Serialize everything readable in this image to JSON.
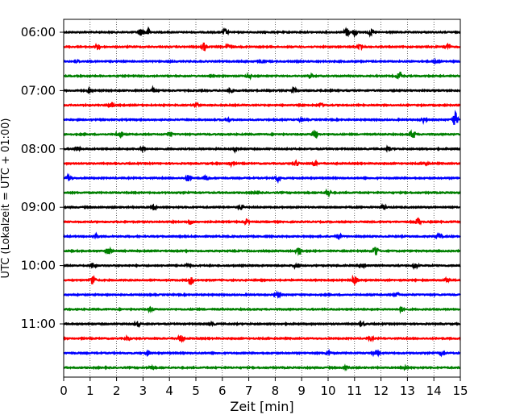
{
  "chart_data": {
    "type": "line",
    "title": "",
    "xlabel": "Zeit  [min]",
    "ylabel": "UTC (Lokalzeit = UTC + 01:00)",
    "xlim": [
      0,
      15
    ],
    "x_ticks": [
      0,
      1,
      2,
      3,
      4,
      5,
      6,
      7,
      8,
      9,
      10,
      11,
      12,
      13,
      14,
      15
    ],
    "x_grid": "dotted",
    "y_ticks": [
      {
        "label": "06:00",
        "trace_index": 0
      },
      {
        "label": "07:00",
        "trace_index": 4
      },
      {
        "label": "08:00",
        "trace_index": 8
      },
      {
        "label": "09:00",
        "trace_index": 12
      },
      {
        "label": "10:00",
        "trace_index": 16
      },
      {
        "label": "11:00",
        "trace_index": 20
      }
    ],
    "color_cycle": [
      "#000000",
      "#ff0000",
      "#0000ff",
      "#008000"
    ],
    "trace_interval_min": 15,
    "traces": [
      {
        "start": "06:00",
        "bursts": [
          [
            2.9,
            0.55
          ],
          [
            3.2,
            0.5
          ],
          [
            6.1,
            0.5
          ],
          [
            10.7,
            0.65
          ],
          [
            11.0,
            0.5
          ],
          [
            11.6,
            0.45
          ]
        ]
      },
      {
        "start": "06:15",
        "bursts": [
          [
            1.3,
            0.35
          ],
          [
            5.3,
            0.7
          ],
          [
            6.2,
            0.35
          ],
          [
            11.2,
            0.3
          ],
          [
            14.5,
            0.4
          ]
        ]
      },
      {
        "start": "06:30",
        "bursts": [
          [
            0.5,
            0.25
          ],
          [
            7.5,
            0.25
          ],
          [
            14.1,
            0.3
          ]
        ]
      },
      {
        "start": "06:45",
        "bursts": [
          [
            7.0,
            0.3
          ],
          [
            9.3,
            0.3
          ],
          [
            12.7,
            0.75
          ]
        ]
      },
      {
        "start": "07:00",
        "bursts": [
          [
            1.0,
            0.4
          ],
          [
            3.4,
            0.35
          ],
          [
            6.3,
            0.35
          ],
          [
            8.7,
            0.4
          ]
        ]
      },
      {
        "start": "07:15",
        "bursts": [
          [
            1.8,
            0.55
          ],
          [
            5.0,
            0.35
          ],
          [
            9.7,
            0.35
          ]
        ]
      },
      {
        "start": "07:30",
        "bursts": [
          [
            6.2,
            0.25
          ],
          [
            9.0,
            0.3
          ],
          [
            13.6,
            0.3
          ],
          [
            14.8,
            1.2
          ]
        ]
      },
      {
        "start": "07:45",
        "bursts": [
          [
            2.1,
            0.5
          ],
          [
            4.0,
            0.4
          ],
          [
            9.5,
            0.9
          ],
          [
            13.2,
            0.75
          ]
        ]
      },
      {
        "start": "08:00",
        "bursts": [
          [
            0.5,
            0.35
          ],
          [
            3.0,
            0.35
          ],
          [
            6.5,
            0.3
          ],
          [
            12.3,
            0.3
          ]
        ]
      },
      {
        "start": "08:15",
        "bursts": [
          [
            6.3,
            0.3
          ],
          [
            8.8,
            0.4
          ],
          [
            9.5,
            0.3
          ],
          [
            13.7,
            0.35
          ]
        ]
      },
      {
        "start": "08:30",
        "bursts": [
          [
            0.2,
            0.45
          ],
          [
            4.7,
            0.5
          ],
          [
            5.4,
            0.35
          ],
          [
            8.1,
            0.45
          ]
        ]
      },
      {
        "start": "08:45",
        "bursts": [
          [
            7.3,
            0.3
          ],
          [
            10.0,
            0.55
          ]
        ]
      },
      {
        "start": "09:00",
        "bursts": [
          [
            3.4,
            0.3
          ],
          [
            6.7,
            0.3
          ],
          [
            12.1,
            0.35
          ]
        ]
      },
      {
        "start": "09:15",
        "bursts": [
          [
            4.8,
            0.3
          ],
          [
            6.9,
            0.35
          ],
          [
            13.4,
            0.55
          ]
        ]
      },
      {
        "start": "09:30",
        "bursts": [
          [
            1.2,
            0.35
          ],
          [
            10.4,
            0.45
          ],
          [
            14.2,
            0.55
          ]
        ]
      },
      {
        "start": "09:45",
        "bursts": [
          [
            1.7,
            0.55
          ],
          [
            8.9,
            0.8
          ],
          [
            11.8,
            0.95
          ]
        ]
      },
      {
        "start": "10:00",
        "bursts": [
          [
            1.1,
            0.5
          ],
          [
            4.7,
            0.3
          ],
          [
            8.8,
            0.45
          ],
          [
            11.3,
            0.6
          ],
          [
            13.3,
            0.35
          ]
        ]
      },
      {
        "start": "10:15",
        "bursts": [
          [
            1.1,
            0.85
          ],
          [
            4.8,
            0.7
          ],
          [
            11.0,
            0.65
          ],
          [
            14.5,
            0.4
          ]
        ]
      },
      {
        "start": "10:30",
        "bursts": [
          [
            8.1,
            0.3
          ],
          [
            12.6,
            0.3
          ]
        ]
      },
      {
        "start": "10:45",
        "bursts": [
          [
            3.3,
            0.3
          ],
          [
            12.8,
            0.35
          ]
        ]
      },
      {
        "start": "11:00",
        "bursts": [
          [
            2.8,
            0.3
          ],
          [
            5.6,
            0.3
          ],
          [
            11.3,
            0.25
          ]
        ]
      },
      {
        "start": "11:15",
        "bursts": [
          [
            2.4,
            0.3
          ],
          [
            4.4,
            0.7
          ],
          [
            11.6,
            0.25
          ]
        ]
      },
      {
        "start": "11:30",
        "bursts": [
          [
            3.2,
            0.3
          ],
          [
            10.0,
            0.3
          ],
          [
            11.8,
            0.45
          ],
          [
            14.3,
            0.3
          ]
        ]
      },
      {
        "start": "11:45",
        "bursts": [
          [
            3.3,
            0.25
          ],
          [
            10.7,
            0.3
          ],
          [
            12.9,
            0.25
          ]
        ]
      }
    ]
  }
}
